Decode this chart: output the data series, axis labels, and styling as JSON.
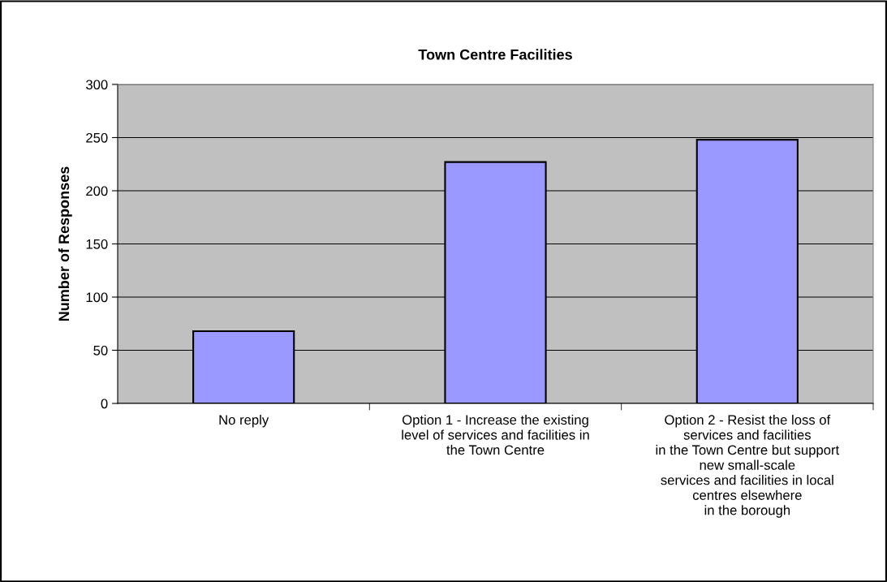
{
  "chart_data": {
    "type": "bar",
    "title": "Town Centre Facilities",
    "ylabel": "Number of Responses",
    "categories": [
      "No reply",
      "Option 1 - Increase the existing\nlevel of services and facilities in\nthe Town Centre",
      "Option 2 - Resist the loss of\nservices and facilities\nin the Town Centre but support\nnew small-scale\nservices and facilities in local\ncentres elsewhere\nin the borough"
    ],
    "values": [
      68,
      227,
      248
    ],
    "color": "#9999ff",
    "ylim": [
      0,
      300
    ],
    "yticks": [
      0,
      50,
      100,
      150,
      200,
      250,
      300
    ],
    "grid": "y"
  }
}
